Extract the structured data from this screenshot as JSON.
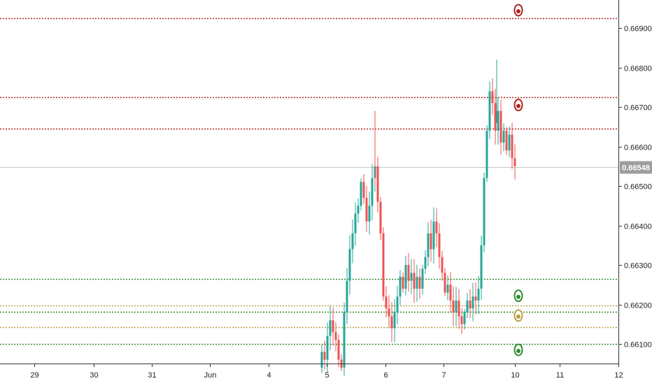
{
  "chart_data": {
    "type": "candlestick",
    "y_axis": {
      "ticks": [
        "0.66900",
        "0.66800",
        "0.66700",
        "0.66600",
        "0.66500",
        "0.66400",
        "0.66300",
        "0.66200",
        "0.66100"
      ],
      "range": [
        0.6604,
        0.6698
      ]
    },
    "x_axis": {
      "ticks": [
        "29",
        "30",
        "31",
        "Jun",
        "4",
        "5",
        "6",
        "7",
        "10",
        "11",
        "12"
      ]
    },
    "last_price": "0.66548",
    "colors": {
      "up": "#26a69a",
      "down": "#ef5350",
      "resistance": "#b22222",
      "support": "#2e8b2e",
      "pivot": "#b8a040",
      "last_price_line": "#c8c8c8",
      "last_price_label_bg": "#9e9e9e",
      "axis_text": "#222222"
    },
    "horizontal_levels": [
      {
        "price": 0.66925,
        "kind": "resistance"
      },
      {
        "price": 0.66725,
        "kind": "resistance"
      },
      {
        "price": 0.66645,
        "kind": "resistance"
      },
      {
        "price": 0.66265,
        "kind": "support"
      },
      {
        "price": 0.66198,
        "kind": "pivot"
      },
      {
        "price": 0.66182,
        "kind": "support"
      },
      {
        "price": 0.66143,
        "kind": "pivot"
      },
      {
        "price": 0.661,
        "kind": "support"
      }
    ],
    "level_markers": [
      {
        "price": 0.66945,
        "kind": "resistance"
      },
      {
        "price": 0.66705,
        "kind": "resistance"
      },
      {
        "price": 0.66222,
        "kind": "support"
      },
      {
        "price": 0.66172,
        "kind": "pivot"
      },
      {
        "price": 0.66085,
        "kind": "support"
      }
    ],
    "series": [
      {
        "name": "",
        "price_path": [
          0.6604,
          0.6608,
          0.6606,
          0.6612,
          0.6616,
          0.6613,
          0.6611,
          0.6606,
          0.6604,
          0.6618,
          0.6626,
          0.6634,
          0.6638,
          0.6643,
          0.6645,
          0.6651,
          0.6647,
          0.6641,
          0.6645,
          0.6652,
          0.6655,
          0.6646,
          0.6638,
          0.6622,
          0.6619,
          0.6617,
          0.6614,
          0.6618,
          0.6622,
          0.6627,
          0.6624,
          0.663,
          0.6626,
          0.6628,
          0.6624,
          0.6627,
          0.6624,
          0.6629,
          0.6632,
          0.6638,
          0.6634,
          0.6641,
          0.6638,
          0.6632,
          0.6628,
          0.6623,
          0.6625,
          0.6621,
          0.6618,
          0.6621,
          0.6617,
          0.6615,
          0.6618,
          0.6621,
          0.6619,
          0.6622,
          0.6621,
          0.6624,
          0.6635,
          0.6652,
          0.6664,
          0.6674,
          0.6671,
          0.6664,
          0.6669,
          0.6661,
          0.6664,
          0.6659,
          0.6663,
          0.6657,
          0.6655
        ]
      }
    ]
  }
}
